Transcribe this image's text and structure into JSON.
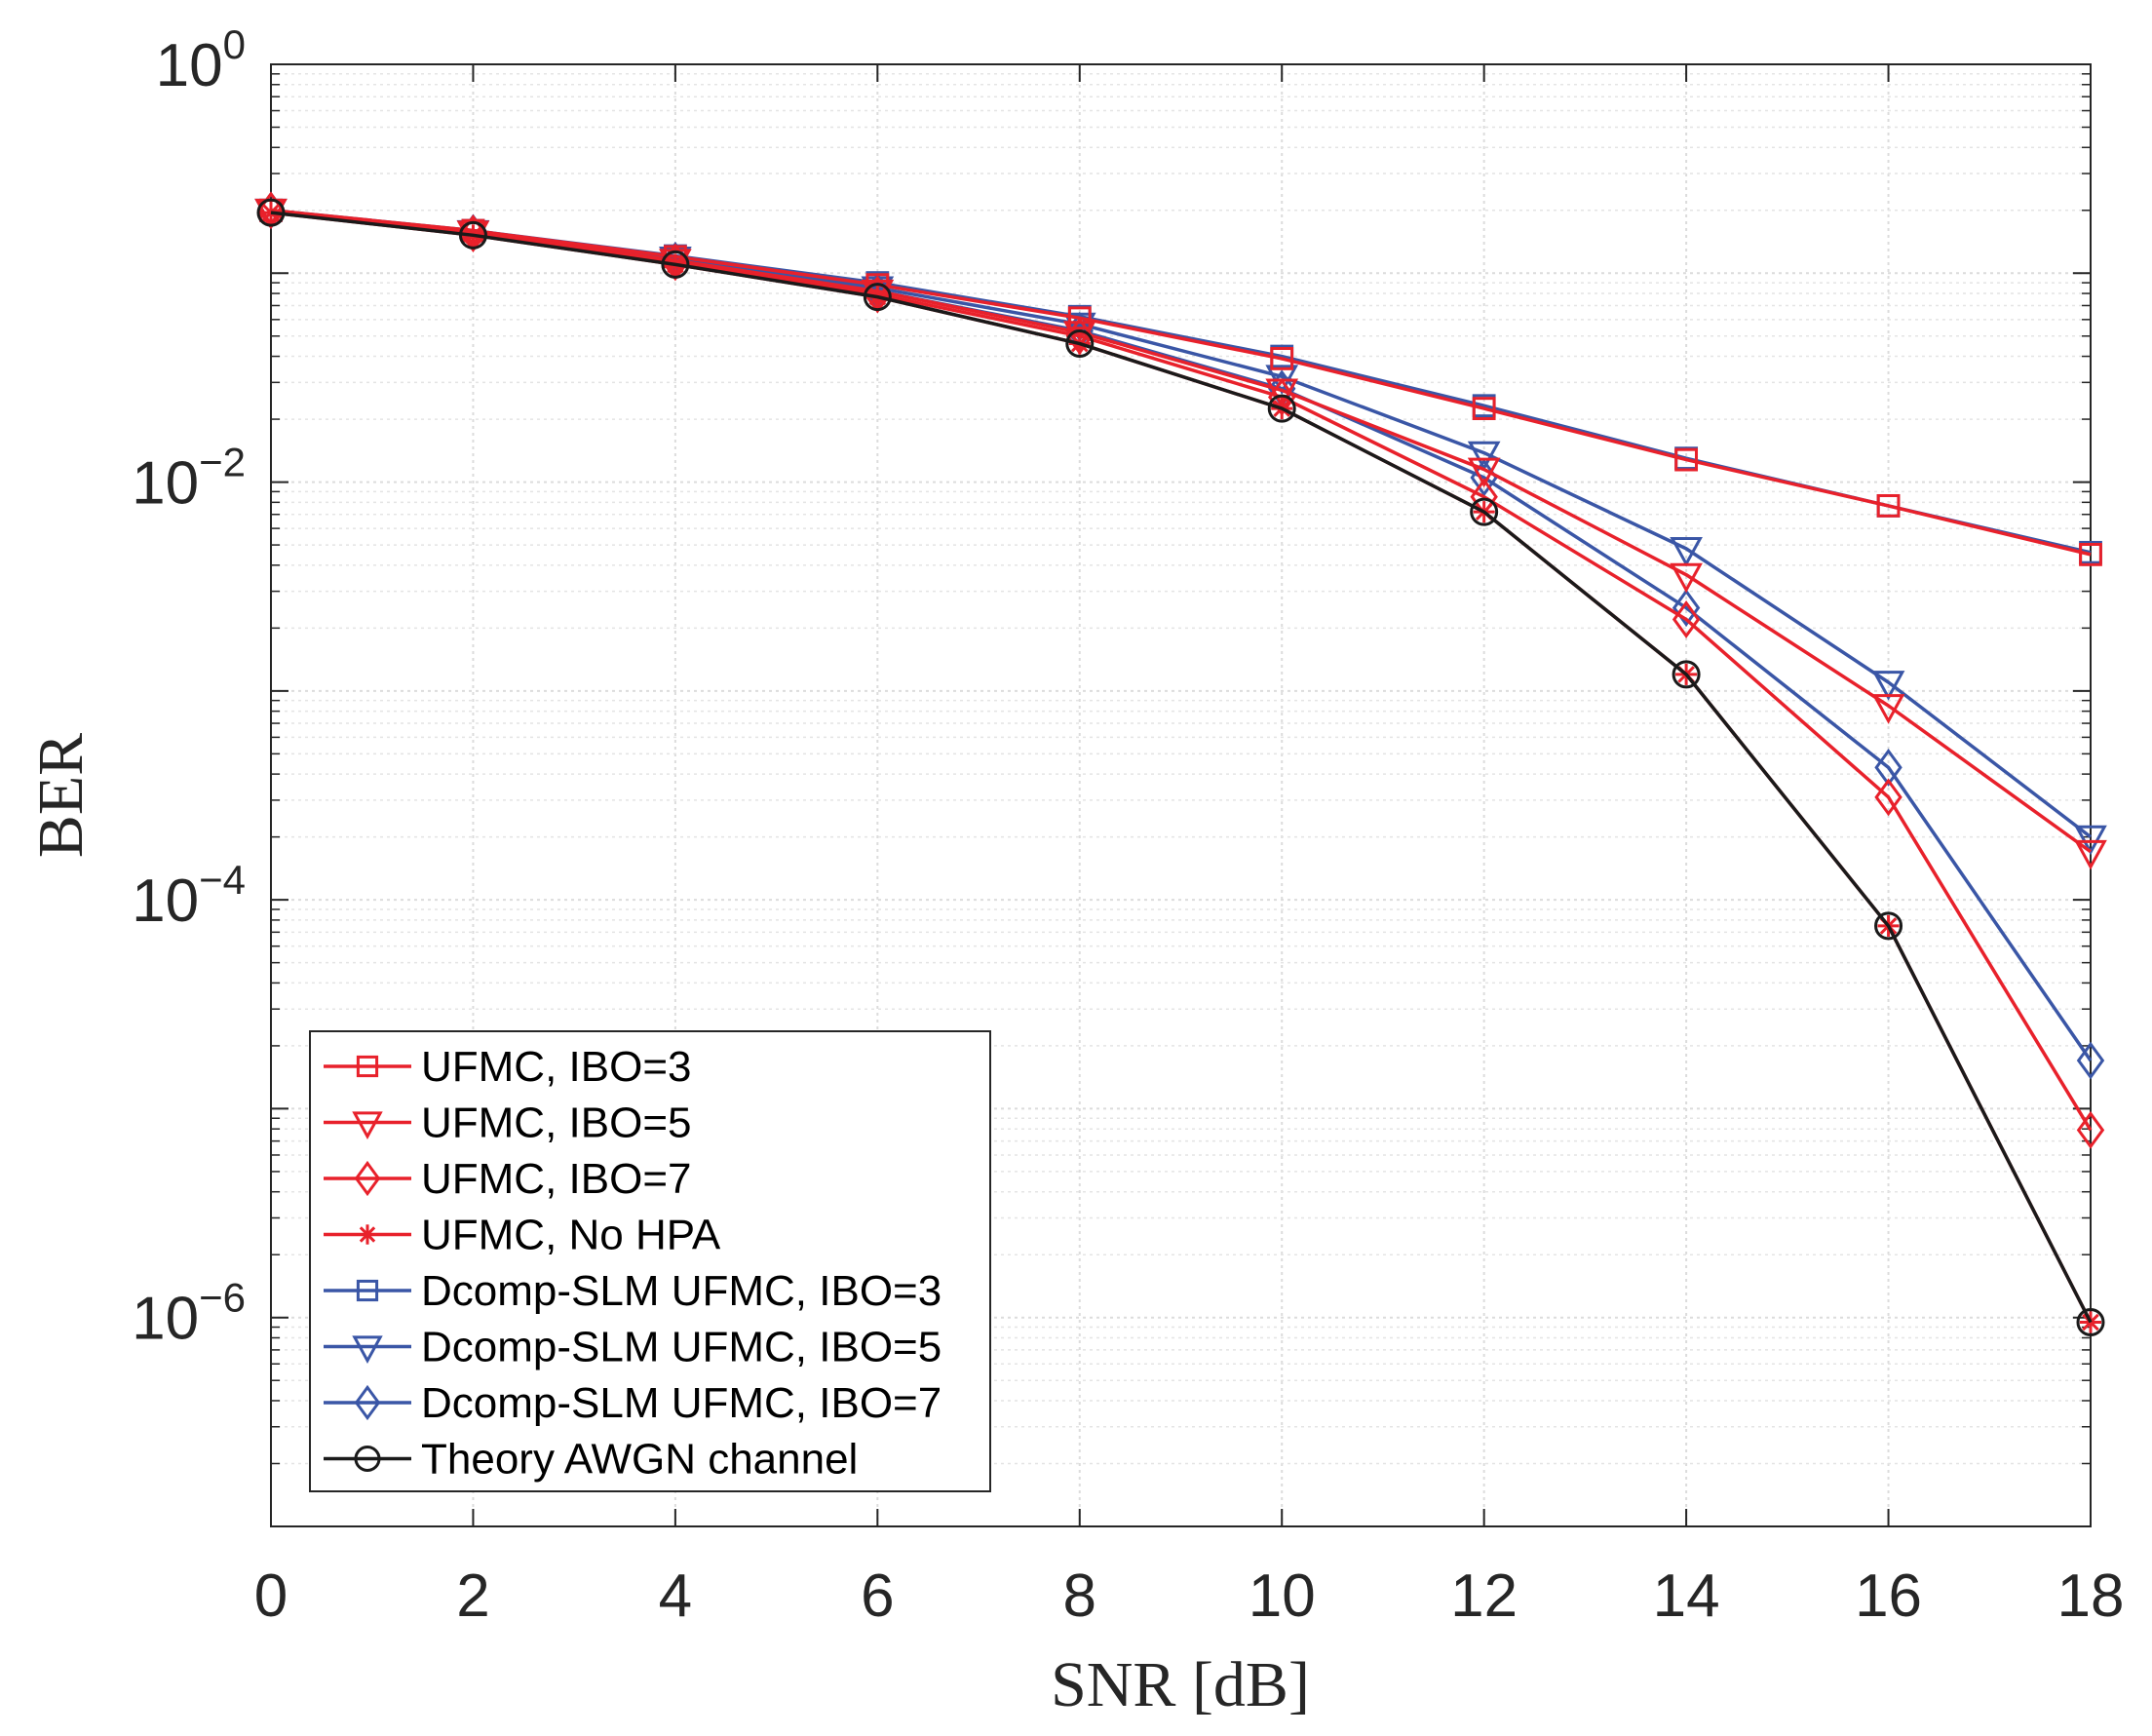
{
  "chart_data": {
    "type": "line",
    "title": "",
    "xlabel": "SNR [dB]",
    "ylabel": "BER",
    "yscale": "log",
    "xlim": [
      0,
      18
    ],
    "ylim": [
      1e-07,
      1
    ],
    "grid": true,
    "legend_position": "bottom-left",
    "x": [
      0,
      2,
      4,
      6,
      8,
      10,
      12,
      14,
      16,
      18
    ],
    "x_tick_labels": [
      "0",
      "2",
      "4",
      "6",
      "8",
      "10",
      "12",
      "14",
      "16",
      "18"
    ],
    "y_tick_labels": [
      {
        "value": 1,
        "base": "10",
        "exp": "0"
      },
      {
        "value": 0.01,
        "base": "10",
        "exp": "−2"
      },
      {
        "value": 0.0001,
        "base": "10",
        "exp": "−4"
      },
      {
        "value": 1e-06,
        "base": "10",
        "exp": "−6"
      }
    ],
    "series": [
      {
        "name": "UFMC, IBO=3",
        "color": "#e8212b",
        "marker": "square",
        "values": [
          0.2,
          0.16,
          0.12,
          0.088,
          0.061,
          0.039,
          0.0225,
          0.0128,
          0.0077,
          0.0045
        ]
      },
      {
        "name": "UFMC, IBO=5",
        "color": "#e8212b",
        "marker": "triangle-down",
        "values": [
          0.2,
          0.157,
          0.115,
          0.082,
          0.052,
          0.0275,
          0.0115,
          0.0036,
          0.00085,
          0.00017
        ]
      },
      {
        "name": "UFMC, IBO=7",
        "color": "#e8212b",
        "marker": "diamond",
        "values": [
          0.2,
          0.155,
          0.113,
          0.079,
          0.05,
          0.0255,
          0.0085,
          0.0022,
          0.00031,
          7.9e-06
        ]
      },
      {
        "name": "UFMC, No HPA",
        "color": "#e8212b",
        "marker": "asterisk",
        "values": [
          0.195,
          0.152,
          0.11,
          0.077,
          0.046,
          0.0225,
          0.0072,
          0.0012,
          7.5e-05,
          9.5e-07
        ]
      },
      {
        "name": "Dcomp-SLM UFMC, IBO=3",
        "color": "#3a56a6",
        "marker": "square",
        "values": [
          0.2,
          0.16,
          0.121,
          0.09,
          0.062,
          0.04,
          0.0232,
          0.013,
          0.0077,
          0.0046
        ]
      },
      {
        "name": "Dcomp-SLM UFMC, IBO=5",
        "color": "#3a56a6",
        "marker": "triangle-down",
        "values": [
          0.2,
          0.158,
          0.118,
          0.085,
          0.057,
          0.032,
          0.0138,
          0.0048,
          0.0011,
          0.0002
        ]
      },
      {
        "name": "Dcomp-SLM UFMC, IBO=7",
        "color": "#3a56a6",
        "marker": "diamond",
        "values": [
          0.2,
          0.156,
          0.115,
          0.082,
          0.053,
          0.028,
          0.0105,
          0.0025,
          0.00043,
          1.7e-05
        ]
      },
      {
        "name": "Theory AWGN channel",
        "color": "#1a1a1a",
        "marker": "circle",
        "values": [
          0.195,
          0.152,
          0.11,
          0.077,
          0.046,
          0.0225,
          0.0072,
          0.0012,
          7.5e-05,
          9.5e-07
        ]
      }
    ]
  }
}
